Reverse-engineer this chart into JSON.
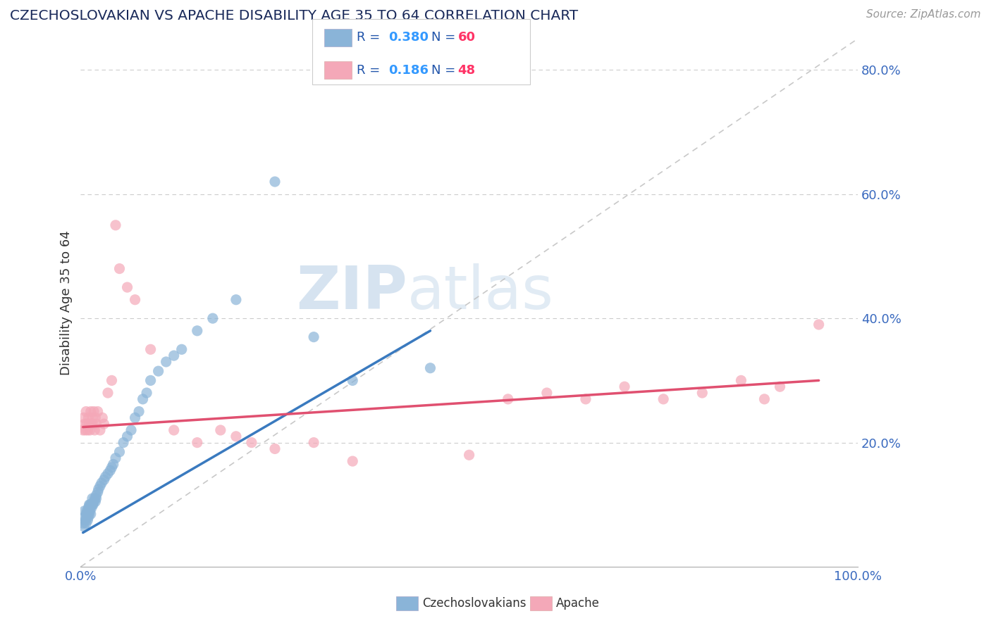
{
  "title": "CZECHOSLOVAKIAN VS APACHE DISABILITY AGE 35 TO 64 CORRELATION CHART",
  "source_text": "Source: ZipAtlas.com",
  "ylabel": "Disability Age 35 to 64",
  "xlim": [
    0.0,
    1.0
  ],
  "ylim": [
    0.0,
    0.85
  ],
  "blue_color": "#8ab4d8",
  "pink_color": "#f4a8b8",
  "blue_line_color": "#3a7abf",
  "pink_line_color": "#e05070",
  "title_color": "#1a2a5a",
  "tick_color": "#3a6abf",
  "watermark_zip": "ZIP",
  "watermark_atlas": "atlas",
  "czech_x": [
    0.003,
    0.004,
    0.005,
    0.005,
    0.006,
    0.007,
    0.007,
    0.008,
    0.008,
    0.009,
    0.009,
    0.01,
    0.01,
    0.01,
    0.011,
    0.011,
    0.012,
    0.012,
    0.013,
    0.013,
    0.014,
    0.015,
    0.015,
    0.016,
    0.017,
    0.018,
    0.019,
    0.02,
    0.02,
    0.022,
    0.023,
    0.025,
    0.027,
    0.03,
    0.032,
    0.035,
    0.038,
    0.04,
    0.042,
    0.045,
    0.05,
    0.055,
    0.06,
    0.065,
    0.07,
    0.075,
    0.08,
    0.085,
    0.09,
    0.1,
    0.11,
    0.12,
    0.13,
    0.15,
    0.17,
    0.2,
    0.25,
    0.3,
    0.35,
    0.45
  ],
  "czech_y": [
    0.07,
    0.065,
    0.08,
    0.09,
    0.075,
    0.07,
    0.085,
    0.08,
    0.09,
    0.075,
    0.085,
    0.08,
    0.09,
    0.095,
    0.085,
    0.1,
    0.09,
    0.1,
    0.085,
    0.1,
    0.095,
    0.1,
    0.11,
    0.1,
    0.105,
    0.11,
    0.105,
    0.11,
    0.115,
    0.12,
    0.125,
    0.13,
    0.135,
    0.14,
    0.145,
    0.15,
    0.155,
    0.16,
    0.165,
    0.175,
    0.185,
    0.2,
    0.21,
    0.22,
    0.24,
    0.25,
    0.27,
    0.28,
    0.3,
    0.315,
    0.33,
    0.34,
    0.35,
    0.38,
    0.4,
    0.43,
    0.62,
    0.37,
    0.3,
    0.32
  ],
  "apache_x": [
    0.003,
    0.004,
    0.005,
    0.006,
    0.007,
    0.008,
    0.009,
    0.01,
    0.011,
    0.012,
    0.013,
    0.014,
    0.015,
    0.016,
    0.017,
    0.018,
    0.019,
    0.02,
    0.022,
    0.025,
    0.028,
    0.03,
    0.035,
    0.04,
    0.045,
    0.05,
    0.06,
    0.07,
    0.09,
    0.12,
    0.15,
    0.18,
    0.2,
    0.22,
    0.25,
    0.3,
    0.35,
    0.5,
    0.55,
    0.6,
    0.65,
    0.7,
    0.75,
    0.8,
    0.85,
    0.88,
    0.9,
    0.95
  ],
  "apache_y": [
    0.22,
    0.24,
    0.23,
    0.22,
    0.25,
    0.23,
    0.22,
    0.24,
    0.23,
    0.22,
    0.25,
    0.23,
    0.24,
    0.23,
    0.25,
    0.22,
    0.24,
    0.23,
    0.25,
    0.22,
    0.24,
    0.23,
    0.28,
    0.3,
    0.55,
    0.48,
    0.45,
    0.43,
    0.35,
    0.22,
    0.2,
    0.22,
    0.21,
    0.2,
    0.19,
    0.2,
    0.17,
    0.18,
    0.27,
    0.28,
    0.27,
    0.29,
    0.27,
    0.28,
    0.3,
    0.27,
    0.29,
    0.39
  ],
  "czech_trend_x": [
    0.003,
    0.45
  ],
  "czech_trend_y_start": 0.055,
  "czech_trend_y_end": 0.38,
  "apache_trend_x": [
    0.003,
    0.95
  ],
  "apache_trend_y_start": 0.225,
  "apache_trend_y_end": 0.3
}
